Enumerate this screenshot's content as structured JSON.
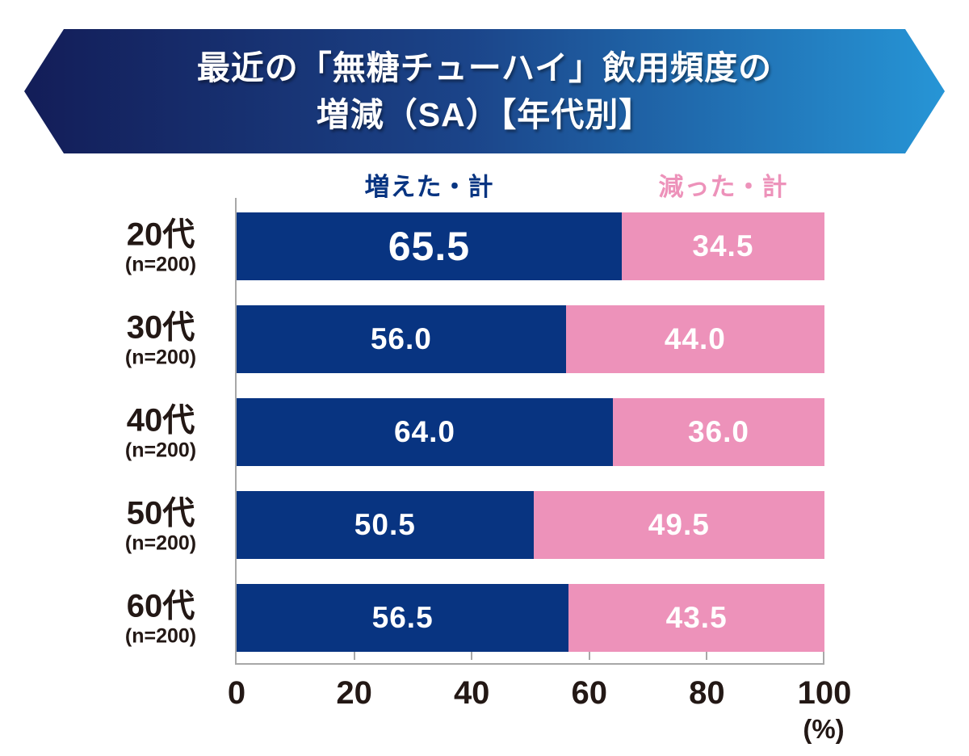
{
  "title": {
    "line1": "最近の「無糖チューハイ」飲用頻度の",
    "line2": "増減（SA）【年代別】"
  },
  "banner_colors": {
    "left": "#131d58",
    "right": "#2695d6"
  },
  "legend": [
    {
      "label": "増えた・計",
      "color": "#083481"
    },
    {
      "label": "減った・計",
      "color": "#ed92ba"
    }
  ],
  "axis": {
    "unit_label": "(%)"
  },
  "chart_data": {
    "type": "bar",
    "orientation": "horizontal-stacked",
    "title": "最近の「無糖チューハイ」飲用頻度の増減（SA）【年代別】",
    "categories": [
      "20代",
      "30代",
      "40代",
      "50代",
      "60代"
    ],
    "sample_sizes": [
      "(n=200)",
      "(n=200)",
      "(n=200)",
      "(n=200)",
      "(n=200)"
    ],
    "series": [
      {
        "name": "増えた・計",
        "color": "#083481",
        "values": [
          65.5,
          56,
          64,
          50.5,
          56.5
        ],
        "value_labels": [
          "65.5",
          "56.0",
          "64.0",
          "50.5",
          "56.5"
        ]
      },
      {
        "name": "減った・計",
        "color": "#ed92ba",
        "values": [
          34.5,
          44,
          36,
          49.5,
          43.5
        ],
        "value_labels": [
          "34.5",
          "44.0",
          "36.0",
          "49.5",
          "43.5"
        ]
      }
    ],
    "xlim": [
      0,
      100
    ],
    "x_ticks": [
      0,
      20,
      40,
      60,
      80,
      100
    ],
    "x_unit": "(%)",
    "grid": false,
    "legend_position": "top"
  }
}
